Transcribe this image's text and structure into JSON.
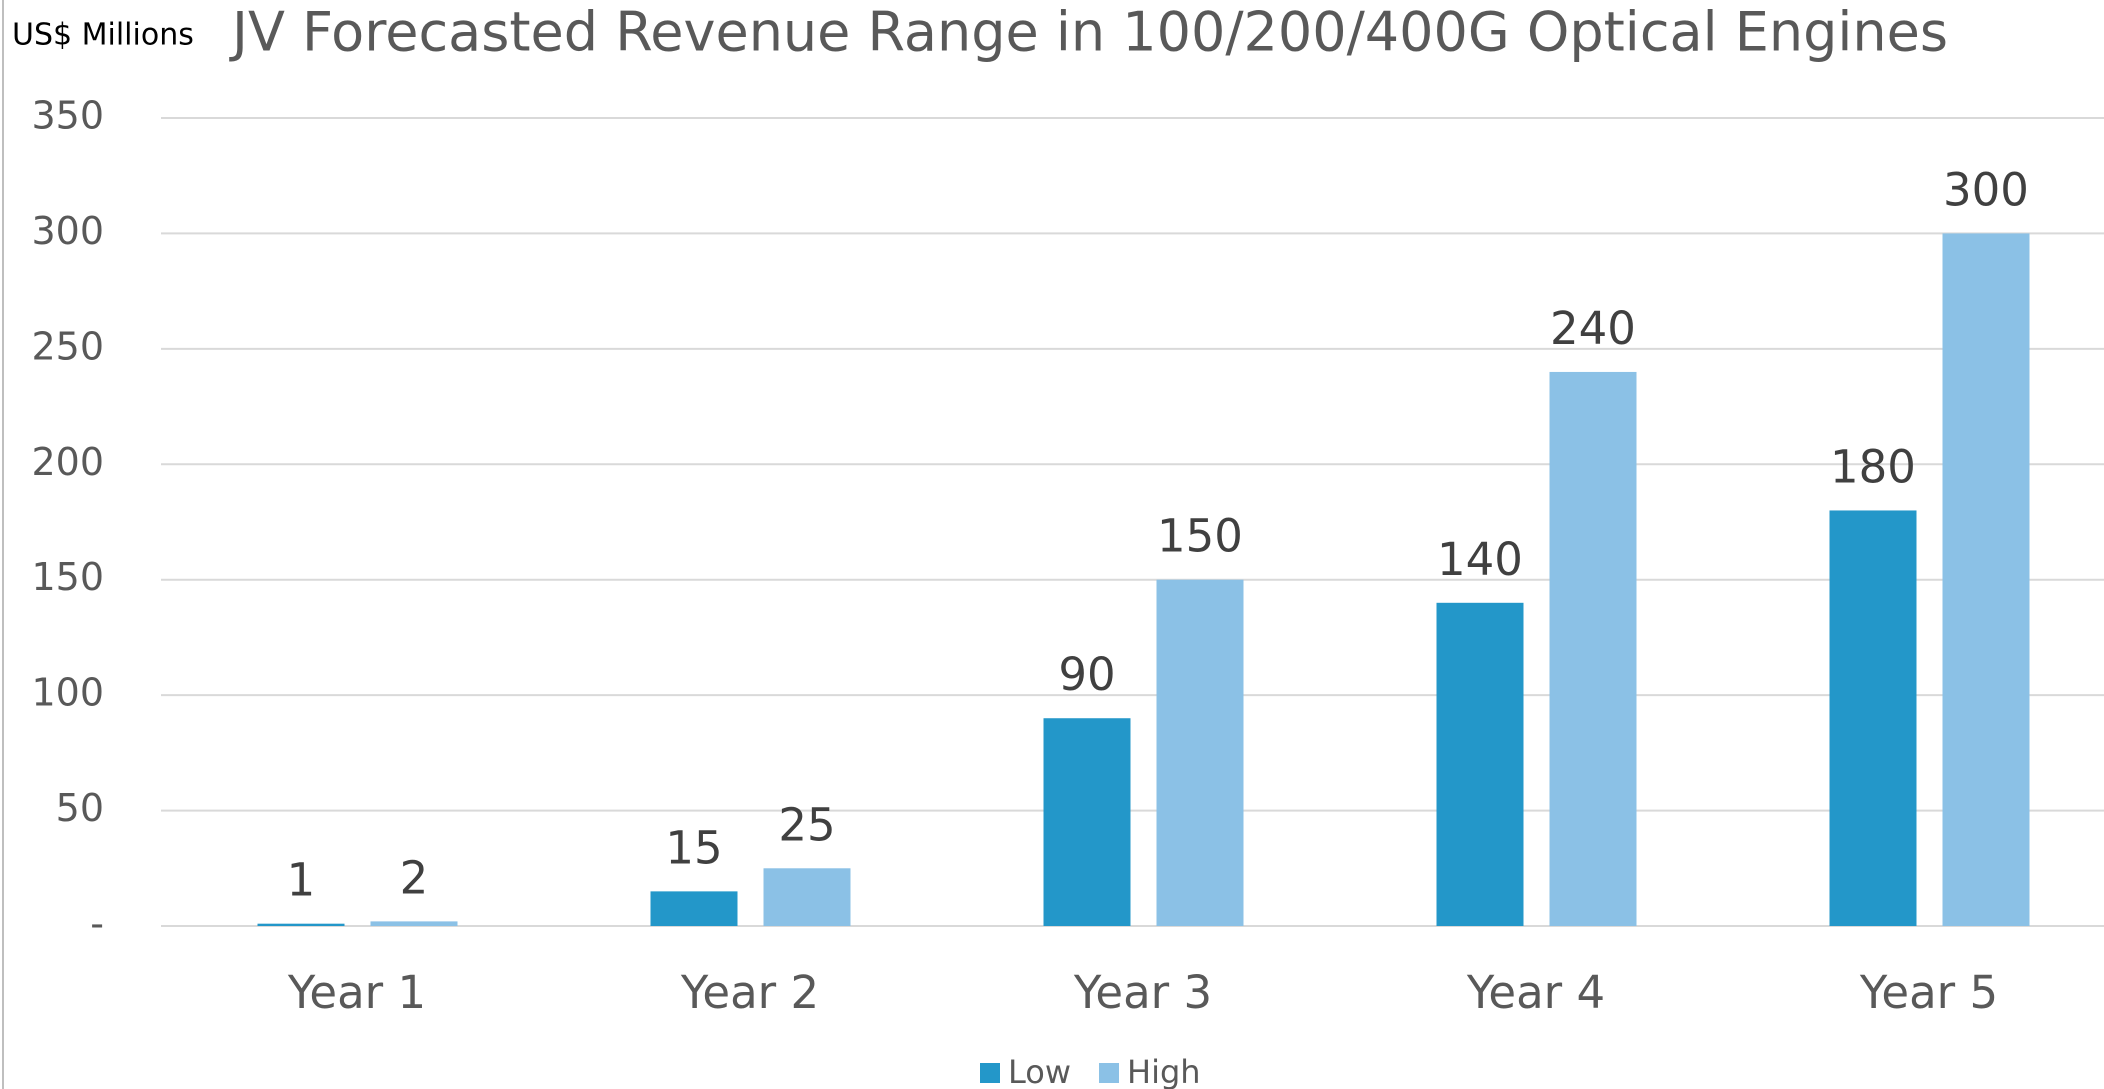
{
  "chart_data": {
    "type": "bar",
    "title": "JV Forecasted Revenue Range in 100/200/400G Optical Engines",
    "y_label": "US$ Millions",
    "categories": [
      "Year 1",
      "Year 2",
      "Year 3",
      "Year 4",
      "Year 5"
    ],
    "series": [
      {
        "name": "Low",
        "color": "#2397c9",
        "values": [
          1,
          15,
          90,
          140,
          180
        ]
      },
      {
        "name": "High",
        "color": "#8bc1e6",
        "values": [
          2,
          25,
          150,
          240,
          300
        ]
      }
    ],
    "ylim": [
      0,
      350
    ],
    "yticks": [
      {
        "value": 0,
        "label": "-"
      },
      50,
      100,
      150,
      200,
      250,
      300,
      350
    ],
    "grid": true,
    "legend": "bottom"
  }
}
